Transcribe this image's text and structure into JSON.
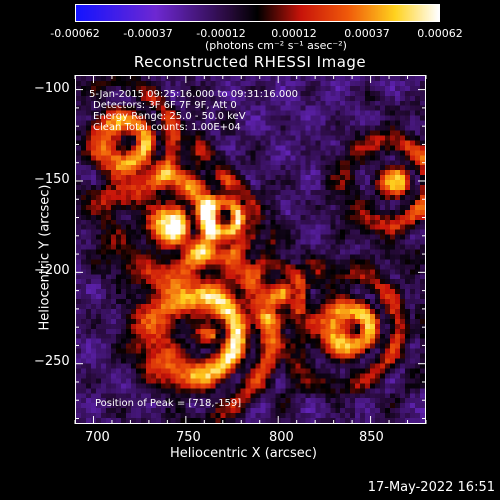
{
  "colorbar": {
    "ticks": [
      "-0.00062",
      "-0.00037",
      "-0.00012",
      "0.00012",
      "0.00037",
      "0.00062"
    ],
    "unit_label": "(photons cm⁻² s⁻¹ asec⁻²)"
  },
  "title": "Reconstructed RHESSI Image",
  "annotations": {
    "time_range": "5-Jan-2015 09:25:16.000 to 09:31:16.000",
    "detectors": "Detectors: 3F 6F 7F 9F, Att 0",
    "energy": "Energy Range: 25.0 - 50.0 keV",
    "clean": "Clean    Total counts: 1.00E+04",
    "peak": "Position of Peak = [718,-159]"
  },
  "x_axis": {
    "label": "Heliocentric X (arcsec)",
    "ticks": [
      "700",
      "750",
      "800",
      "850"
    ],
    "range": [
      690,
      880
    ]
  },
  "y_axis": {
    "label": "Heliocentric Y (arcsec)",
    "ticks": [
      "−100",
      "−150",
      "−200",
      "−250"
    ],
    "range": [
      -283,
      -92
    ]
  },
  "datestamp": "17-May-2022 16:51",
  "colormap": "red-temperature (blue-purple-black-red-orange-yellow-white)"
}
